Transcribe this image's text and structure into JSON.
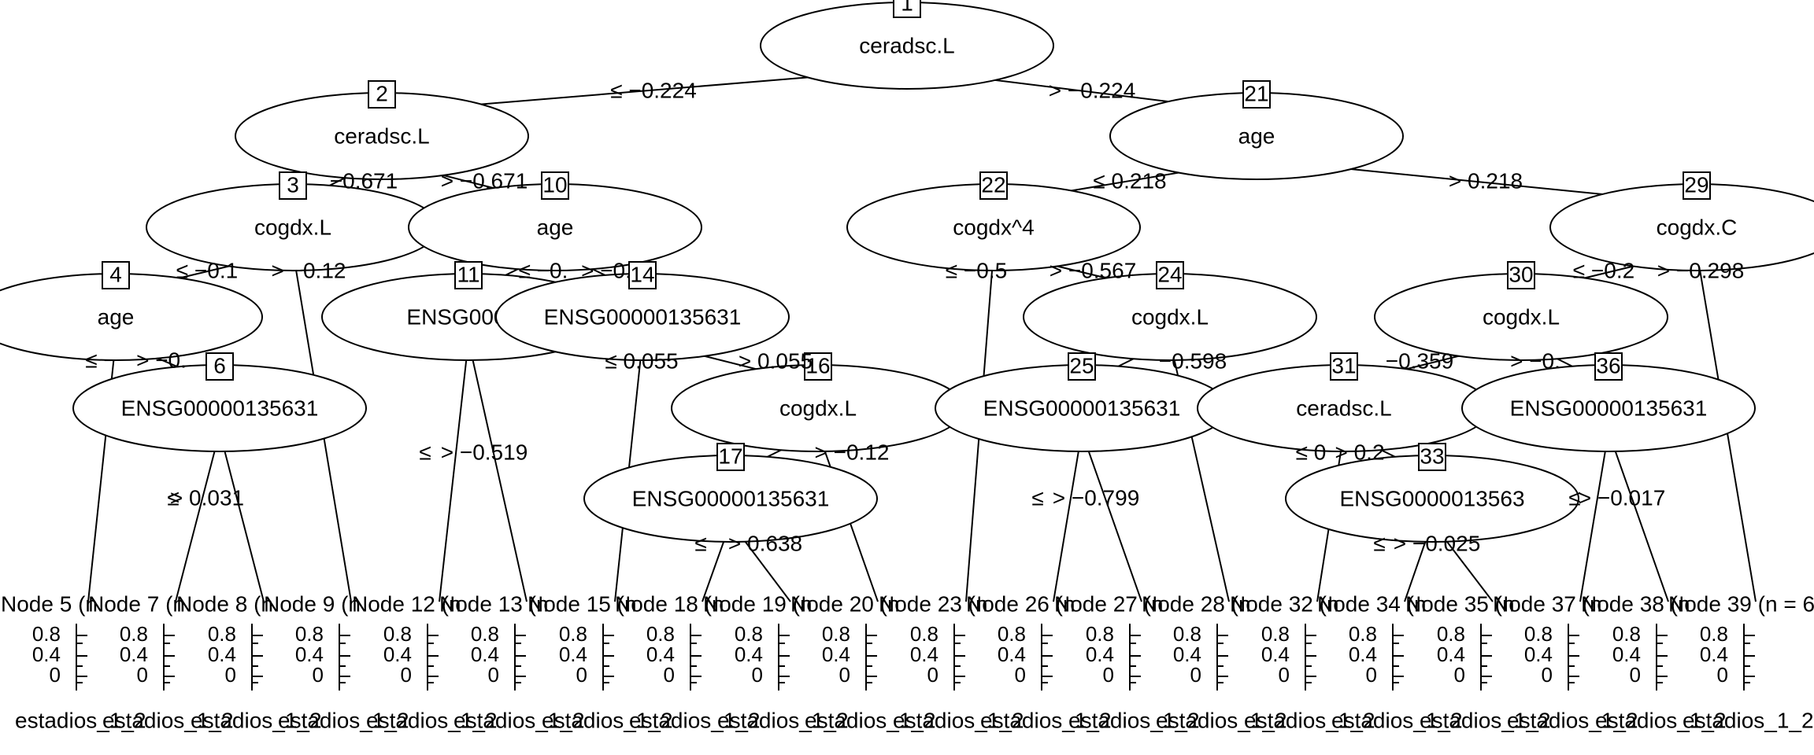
{
  "nodes": [
    {
      "id": "1",
      "label": "ceradsc.L"
    },
    {
      "id": "2",
      "label": "ceradsc.L"
    },
    {
      "id": "3",
      "label": "cogdx.L"
    },
    {
      "id": "4",
      "label": "age"
    },
    {
      "id": "6",
      "label": "ENSG00000135631"
    },
    {
      "id": "10",
      "label": "age"
    },
    {
      "id": "11",
      "label": "ENSG00000"
    },
    {
      "id": "14",
      "label": "ENSG00000135631"
    },
    {
      "id": "16",
      "label": "cogdx.L"
    },
    {
      "id": "17",
      "label": "ENSG00000135631"
    },
    {
      "id": "21",
      "label": "age"
    },
    {
      "id": "22",
      "label": "cogdx^4"
    },
    {
      "id": "24",
      "label": "cogdx.L"
    },
    {
      "id": "25",
      "label": "ENSG00000135631"
    },
    {
      "id": "29",
      "label": "cogdx.C"
    },
    {
      "id": "30",
      "label": "cogdx.L"
    },
    {
      "id": "31",
      "label": "ceradsc.L"
    },
    {
      "id": "33",
      "label": "ENSG0000013563"
    },
    {
      "id": "36",
      "label": "ENSG00000135631"
    }
  ],
  "edge_labels": [
    "≤ −0.224",
    "> −0.224",
    "≤ 0.218",
    "> 0.218",
    "−0.671",
    "> −0.671",
    "≤ −0.1",
    "> −0.12",
    "≤ −",
    "> −0.",
    "≤ −0.",
    "> −0.",
    "≤ −0.5",
    "> −0.567",
    "≤ −0.2",
    "> −0.298",
    "≤ 0.055",
    "> 0.055",
    "−0.598",
    "−0.359",
    "> −0.",
    "≤",
    "> 0.031",
    "≤",
    "> −0.519",
    "> −0.12",
    "≤",
    "> −0.799",
    "≤ 0",
    "> 0.2",
    "≤",
    "> −0.017",
    "≤",
    "> 0.638",
    "≤",
    "> −0.025"
  ],
  "terminals": [
    "Node 5 (n",
    "Node 7 (n",
    "Node 8 (n",
    "Node 9 (n",
    "Node 12 (n",
    "Node 13 (n",
    "Node 15 (n",
    "Node 18 (n",
    "Node 19 (n",
    "Node 20 (n",
    "Node 23 (n",
    "Node 26 (n",
    "Node 27 (n",
    "Node 28 (n",
    "Node 32 (n",
    "Node 34 (n",
    "Node 35 (n",
    "Node 37 (n",
    "Node 38 (n",
    "Node 39 (n = 6"
  ],
  "ticks": [
    "0.8",
    "0.4",
    "0"
  ],
  "xlabels": [
    "estadios_1_2"
  ]
}
